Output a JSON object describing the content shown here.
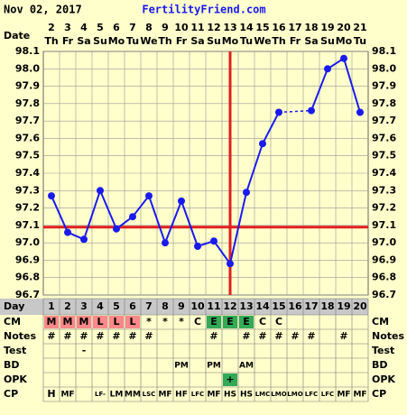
{
  "header": {
    "date": "Nov 02, 2017",
    "site": "FertilityFriend.com"
  },
  "chart_data": {
    "type": "line",
    "x_label": "Date",
    "categories": [
      "2",
      "3",
      "4",
      "5",
      "6",
      "7",
      "8",
      "9",
      "10",
      "11",
      "12",
      "13",
      "14",
      "15",
      "16",
      "17",
      "18",
      "19",
      "20",
      "21"
    ],
    "weekdays": [
      "Th",
      "Fr",
      "Sa",
      "Su",
      "Mo",
      "Tu",
      "We",
      "Th",
      "Fr",
      "Sa",
      "Su",
      "Mo",
      "Tu",
      "We",
      "Th",
      "Fr",
      "Sa",
      "Su",
      "Mo",
      "Tu"
    ],
    "values": [
      97.27,
      97.06,
      97.02,
      97.3,
      97.08,
      97.15,
      97.27,
      97.0,
      97.24,
      96.98,
      97.01,
      96.88,
      97.29,
      97.57,
      97.75,
      null,
      97.76,
      98.0,
      98.06,
      97.75
    ],
    "color": "#1a1aee",
    "ylim": [
      96.7,
      98.1
    ],
    "yticks": [
      96.7,
      96.8,
      96.9,
      {
        "value": 97,
        "label": "97.0"
      },
      97.1,
      97.2,
      97.3,
      97.4,
      97.5,
      97.6,
      97.7,
      97.8,
      97.9,
      {
        "value": 98,
        "label": "98.0"
      },
      98.1
    ],
    "grid": true,
    "coverline": 97.09,
    "ovulation_day": 12,
    "marker_line_color": "#e02020"
  },
  "table": {
    "day_label": "Day",
    "days": [
      1,
      2,
      3,
      4,
      5,
      6,
      7,
      8,
      9,
      10,
      11,
      12,
      13,
      14,
      15,
      16,
      17,
      18,
      19,
      20
    ],
    "rows": [
      {
        "label": "CM",
        "cells": [
          "M",
          "M",
          "M",
          "L",
          "L",
          "L",
          "*",
          "*",
          "*",
          "C",
          "E",
          "E",
          "E",
          "C",
          "C",
          null,
          null,
          null,
          null,
          null
        ]
      },
      {
        "label": "Notes",
        "cells": [
          "#",
          "#",
          "#",
          "#",
          "#",
          "#",
          "#",
          null,
          null,
          null,
          "#",
          null,
          "#",
          "#",
          "#",
          "#",
          "#",
          null,
          "#",
          null
        ]
      },
      {
        "label": "Test",
        "cells": [
          null,
          null,
          "-",
          null,
          null,
          null,
          null,
          null,
          null,
          null,
          null,
          null,
          null,
          null,
          null,
          null,
          null,
          null,
          null,
          null
        ]
      },
      {
        "label": "BD",
        "cells": [
          null,
          null,
          null,
          null,
          null,
          null,
          null,
          null,
          "PM",
          null,
          "PM",
          null,
          "AM",
          null,
          null,
          null,
          null,
          null,
          null,
          null
        ]
      },
      {
        "label": "OPK",
        "cells": [
          null,
          null,
          null,
          null,
          null,
          null,
          null,
          null,
          null,
          null,
          null,
          "+",
          null,
          null,
          null,
          null,
          null,
          null,
          null,
          null
        ]
      },
      {
        "label": "CP",
        "cells": [
          "H",
          "MF",
          null,
          "LF-",
          "LM",
          "MM",
          "LSC",
          "MF",
          "HF",
          "LFC",
          "MF",
          "HS",
          "HS",
          "LMC",
          "LMO",
          "LMO",
          "LFC",
          "LFC",
          "MF",
          "MF"
        ]
      }
    ],
    "cell_colors": {
      "M": "#ff8888",
      "L": "#ff8888",
      "E": "#33aa55",
      "+": "#33aa55"
    }
  }
}
